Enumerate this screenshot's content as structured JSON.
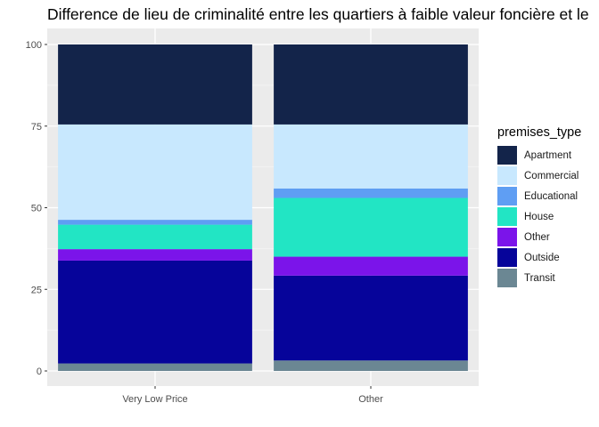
{
  "chart_data": {
    "type": "bar",
    "stacked": true,
    "title": "Difference de lieu de criminalité entre les quartiers à faible valeur foncière et le",
    "xlabel": "",
    "ylabel": "",
    "ylim": [
      0,
      100
    ],
    "yticks": [
      0,
      25,
      50,
      75,
      100
    ],
    "categories": [
      "Very Low Price",
      "Other"
    ],
    "legend": {
      "title": "premises_type",
      "position": "right"
    },
    "series": [
      {
        "name": "Transit",
        "color": "#6b8793",
        "values": [
          2.3,
          3.2
        ]
      },
      {
        "name": "Outside",
        "color": "#06049a",
        "values": [
          31.5,
          26.0
        ]
      },
      {
        "name": "Other",
        "color": "#7b14ea",
        "values": [
          3.5,
          5.8
        ]
      },
      {
        "name": "House",
        "color": "#22e5c4",
        "values": [
          7.5,
          18.0
        ]
      },
      {
        "name": "Educational",
        "color": "#5f9ef3",
        "values": [
          1.5,
          2.9
        ]
      },
      {
        "name": "Commercial",
        "color": "#c8e8fe",
        "values": [
          29.2,
          19.6
        ]
      },
      {
        "name": "Apartment",
        "color": "#13244a",
        "values": [
          24.5,
          24.5
        ]
      }
    ],
    "legend_order": [
      "Apartment",
      "Commercial",
      "Educational",
      "House",
      "Other",
      "Outside",
      "Transit"
    ]
  }
}
